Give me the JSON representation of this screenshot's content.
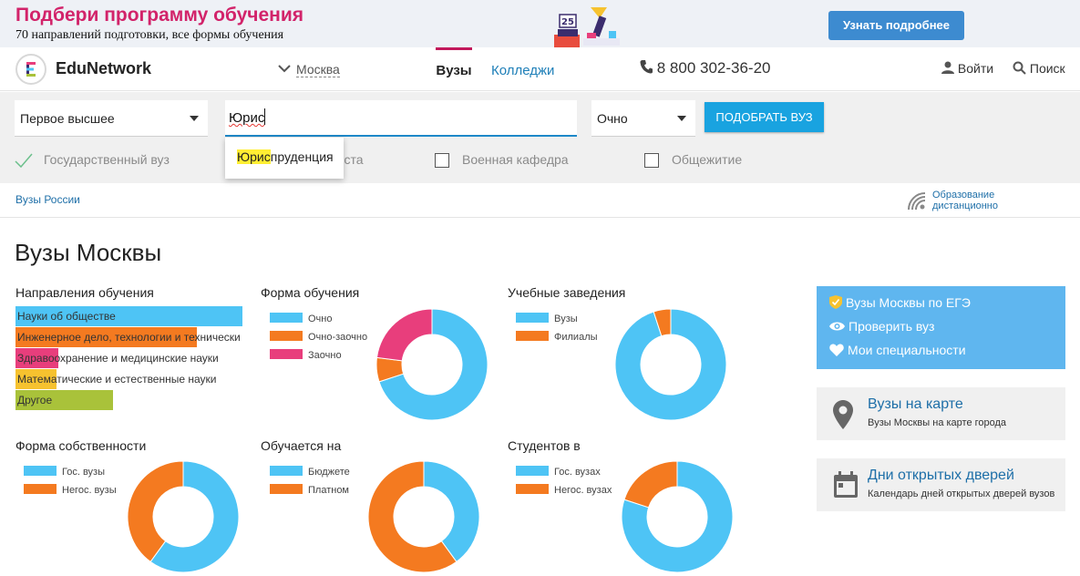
{
  "banner": {
    "title": "Подбери программу обучения",
    "subtitle": "70 направлений подготовки, все формы обучения",
    "button": "Узнать подробнее"
  },
  "header": {
    "logo": "EduNetwork",
    "logo_letter": "E",
    "city": "Москва",
    "tabs": [
      {
        "label": "Вузы",
        "active": true
      },
      {
        "label": "Колледжи",
        "active": false
      }
    ],
    "phone": "8 800 302-36-20",
    "login": "Войти",
    "search": "Поиск"
  },
  "filters": {
    "level": "Первое высшее",
    "specialty_value": "Юрис",
    "form": "Очно",
    "submit": "ПОДОБРАТЬ ВУЗ",
    "checkboxes": [
      {
        "label": "Государственный вуз",
        "checked": true
      },
      {
        "label": "Бюджетные места",
        "checked": false
      },
      {
        "label": "Военная кафедра",
        "checked": false
      },
      {
        "label": "Общежитие",
        "checked": false
      }
    ],
    "suggestion": {
      "match": "Юрис",
      "rest": "пруденция"
    }
  },
  "breadcrumb": "Вузы России",
  "remote": {
    "line1": "Образование",
    "line2": "дистанционно"
  },
  "page_title": "Вузы Москвы",
  "colors": {
    "blue": "#4ec4f5",
    "orange": "#f47a20",
    "pink": "#e83e7c",
    "yellow": "#f6c22f",
    "green": "#a9c23a"
  },
  "directions": {
    "title": "Направления обучения",
    "items": [
      {
        "label": "Науки об обществе",
        "share": 1.0,
        "color": "#4ec4f5"
      },
      {
        "label": "Инженерное дело, технологии и технически",
        "share": 0.8,
        "color": "#f47a20"
      },
      {
        "label": "Здравоохранение и медицинские науки",
        "share": 0.19,
        "color": "#e83e7c"
      },
      {
        "label": "Математические и естественные науки",
        "share": 0.18,
        "color": "#f6c22f"
      },
      {
        "label": "Другое",
        "share": 0.43,
        "color": "#a9c23a"
      }
    ]
  },
  "chart_data": [
    {
      "type": "pie",
      "title": "Форма обучения",
      "categories": [
        "Очно",
        "Очно-заочно",
        "Заочно"
      ],
      "values": [
        70,
        7,
        23
      ]
    },
    {
      "type": "pie",
      "title": "Учебные заведения",
      "categories": [
        "Вузы",
        "Филиалы"
      ],
      "values": [
        95,
        5
      ]
    },
    {
      "type": "pie",
      "title": "Форма собственности",
      "categories": [
        "Гос. вузы",
        "Негос. вузы"
      ],
      "values": [
        60,
        40
      ]
    },
    {
      "type": "pie",
      "title": "Обучается на",
      "categories": [
        "Бюджете",
        "Платном"
      ],
      "values": [
        40,
        60
      ]
    },
    {
      "type": "pie",
      "title": "Студентов в",
      "categories": [
        "Гос. вузах",
        "Негос. вузах"
      ],
      "values": [
        80,
        20
      ]
    }
  ],
  "sidebar": {
    "links": [
      "Вузы Москвы по ЕГЭ",
      "Проверить вуз",
      "Мои специальности"
    ],
    "map_card": {
      "title": "Вузы на карте",
      "subtitle": "Вузы Москвы на карте города"
    },
    "open_days_card": {
      "title": "Дни открытых дверей",
      "subtitle": "Календарь дней открытых дверей вузов"
    }
  }
}
